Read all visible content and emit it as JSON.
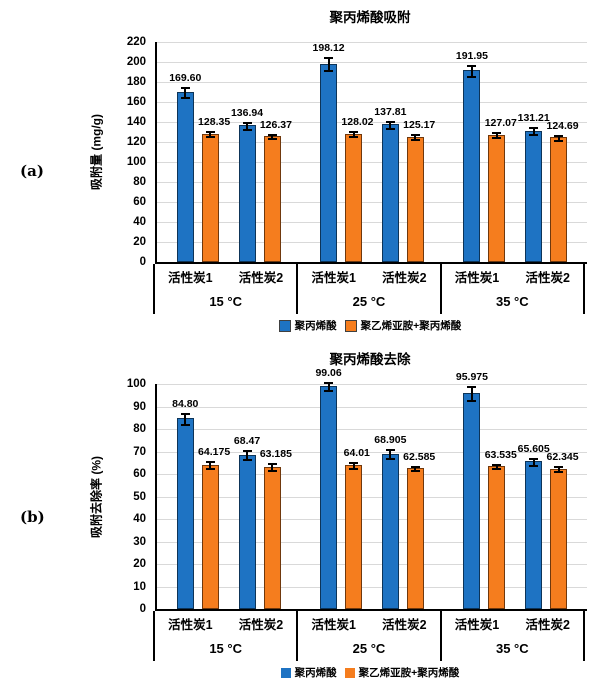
{
  "figure": {
    "panel_a_label": "(a)",
    "panel_b_label": "(b)"
  },
  "colors": {
    "series1": "#1E73C3",
    "series2": "#F57D1E",
    "gridline": "#D9D9D9",
    "axis": "#000000",
    "error_bar": "#000000"
  },
  "chart_data": [
    {
      "type": "bar",
      "panel": "(a)",
      "title": "聚丙烯酸吸附",
      "ylabel": "吸附量 (mg/g)",
      "ylim": [
        0,
        220
      ],
      "ystep": 20,
      "grid": true,
      "legend_position": "bottom",
      "legend_bordered": true,
      "group_labels": [
        "15 °C",
        "25 °C",
        "35 °C"
      ],
      "category_labels": [
        "活性炭1",
        "活性炭2"
      ],
      "series": [
        {
          "name": "聚丙烯酸",
          "color": "#1E73C3",
          "values": [
            169.6,
            136.94,
            198.12,
            137.81,
            191.95,
            131.21
          ],
          "labels": [
            "169.60",
            "136.94",
            "198.12",
            "137.81",
            "191.95",
            "131.21"
          ],
          "errors": [
            5,
            3.5,
            6.5,
            3.5,
            5.5,
            3.5
          ]
        },
        {
          "name": "聚乙烯亚胺+聚丙烯酸",
          "color": "#F57D1E",
          "values": [
            128.35,
            126.37,
            128.02,
            125.17,
            127.07,
            124.69
          ],
          "labels": [
            "128.35",
            "126.37",
            "128.02",
            "125.17",
            "127.07",
            "124.69"
          ],
          "errors": [
            2.5,
            2,
            2.5,
            2.5,
            2.5,
            2.5
          ]
        }
      ]
    },
    {
      "type": "bar",
      "panel": "(b)",
      "title": "聚丙烯酸去除",
      "ylabel": "吸附去除率 (%)",
      "ylim": [
        0,
        100
      ],
      "ystep": 10,
      "grid": true,
      "legend_position": "bottom",
      "legend_bordered": false,
      "group_labels": [
        "15 °C",
        "25 °C",
        "35 °C"
      ],
      "category_labels": [
        "活性炭1",
        "活性炭2"
      ],
      "series": [
        {
          "name": "聚丙烯酸",
          "color": "#1E73C3",
          "values": [
            84.8,
            68.47,
            99.06,
            68.905,
            95.975,
            65.605
          ],
          "labels": [
            "84.80",
            "68.47",
            "99.06",
            "68.905",
            "95.975",
            "65.605"
          ],
          "errors": [
            2.5,
            2,
            1.8,
            2,
            3,
            1.5
          ]
        },
        {
          "name": "聚乙烯亚胺+聚丙烯酸",
          "color": "#F57D1E",
          "values": [
            64.175,
            63.185,
            64.01,
            62.585,
            63.535,
            62.345
          ],
          "labels": [
            "64.175",
            "63.185",
            "64.01",
            "62.585",
            "63.535",
            "62.345"
          ],
          "errors": [
            1.5,
            1.5,
            1.5,
            1,
            1,
            1
          ]
        }
      ]
    }
  ]
}
